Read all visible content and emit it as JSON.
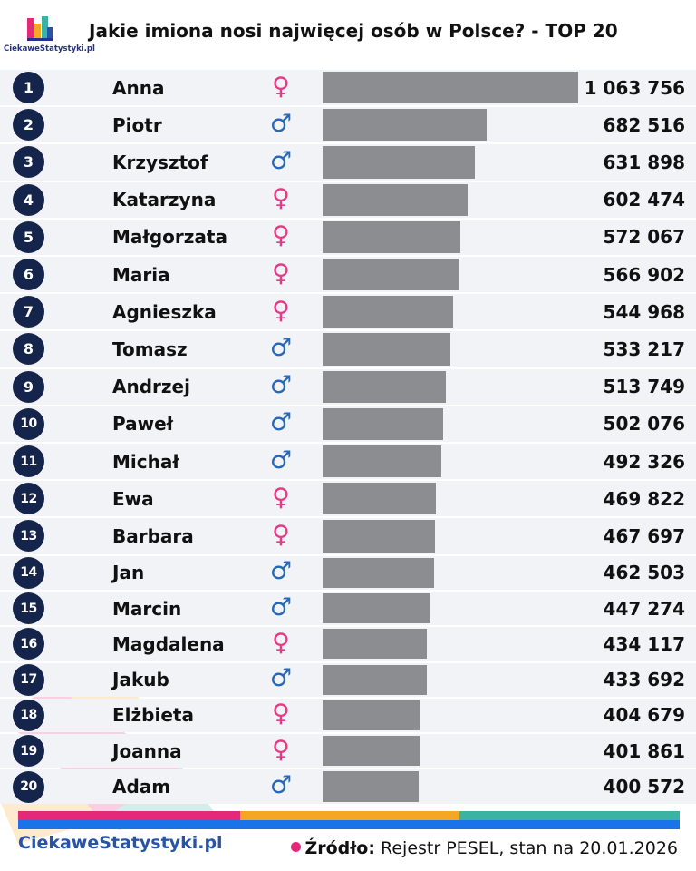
{
  "header": {
    "title": "Jakie imiona nosi najwięcej osób w Polsce? - TOP 20",
    "logo_text": "CiekaweStatystyki.pl",
    "logo_colors": [
      "#e5297a",
      "#f5a623",
      "#3bb3a4",
      "#2754a8",
      "#26318a"
    ]
  },
  "chart_data": {
    "type": "bar",
    "orientation": "horizontal",
    "title": "Jakie imiona nosi najwięcej osób w Polsce? - TOP 20",
    "categories": [
      "Anna",
      "Piotr",
      "Krzysztof",
      "Katarzyna",
      "Małgorzata",
      "Maria",
      "Agnieszka",
      "Tomasz",
      "Andrzej",
      "Paweł",
      "Michał",
      "Ewa",
      "Barbara",
      "Jan",
      "Marcin",
      "Magdalena",
      "Jakub",
      "Elżbieta",
      "Joanna",
      "Adam"
    ],
    "ranks": [
      "1",
      "2",
      "3",
      "4",
      "5",
      "6",
      "7",
      "8",
      "9",
      "10",
      "11",
      "12",
      "13",
      "14",
      "15",
      "16",
      "17",
      "18",
      "19",
      "20"
    ],
    "values": [
      1063756,
      682516,
      631898,
      602474,
      572067,
      566902,
      544968,
      533217,
      513749,
      502076,
      492326,
      469822,
      467697,
      462503,
      447274,
      434117,
      433692,
      404679,
      401861,
      400572
    ],
    "value_labels": [
      "1 063 756",
      "682 516",
      "631 898",
      "602 474",
      "572 067",
      "566 902",
      "544 968",
      "533 217",
      "513 749",
      "502 076",
      "492 326",
      "469 822",
      "467 697",
      "462 503",
      "447 274",
      "434 117",
      "433 692",
      "404 679",
      "401 861",
      "400 572"
    ],
    "genders": [
      "female",
      "male",
      "male",
      "female",
      "female",
      "female",
      "female",
      "male",
      "male",
      "male",
      "male",
      "female",
      "female",
      "male",
      "male",
      "female",
      "male",
      "female",
      "female",
      "male"
    ],
    "gender_symbols": {
      "female": "♀",
      "male": "♂"
    },
    "colors": {
      "bar": "#8c8d90",
      "rank_badge": "#15244a",
      "female": "#e33b86",
      "male": "#2767b7"
    }
  },
  "footer": {
    "brand": "CiekaweStatystyki.pl",
    "source_label": "Źródło:",
    "source_text": "Rejestr PESEL, stan na 20.01.2026",
    "stripe_colors": [
      "#e5297a",
      "#f5a623",
      "#3bb3a4",
      "#1a73e8"
    ]
  }
}
